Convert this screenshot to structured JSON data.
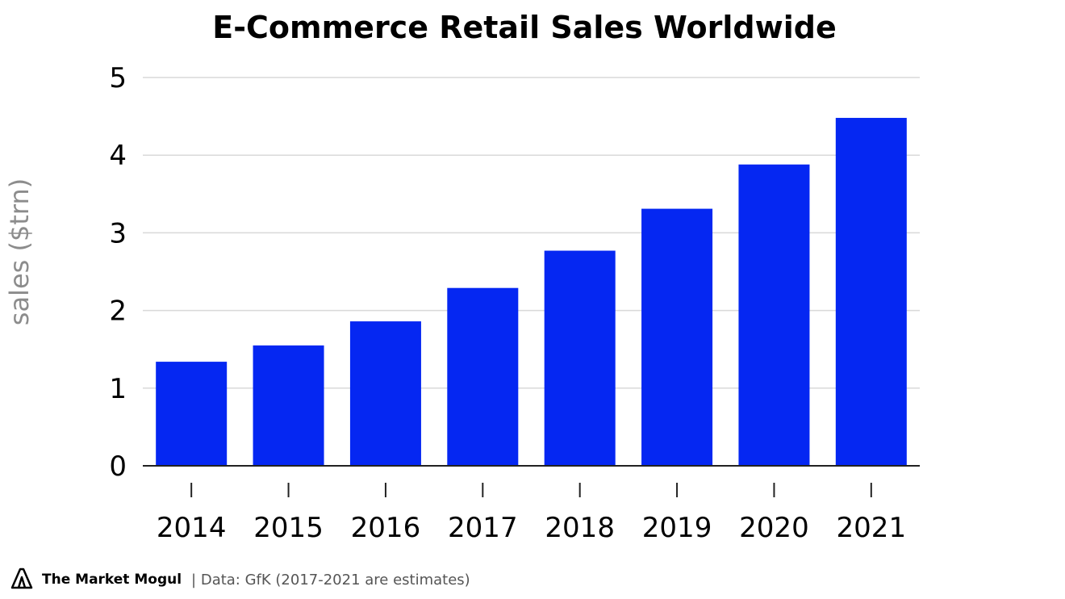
{
  "brand": {
    "name": "The Market Mogul",
    "logo_icon": "mountain-logo-icon"
  },
  "footer": {
    "source": "| Data: GfK (2017-2021 are estimates)"
  },
  "colors": {
    "bar": "#0527f2",
    "grid": "#d9d9d9",
    "axis": "#222222",
    "ylabel": "#8c8c8c"
  },
  "chart_data": {
    "type": "bar",
    "title": "E-Commerce Retail Sales Worldwide",
    "xlabel": "",
    "ylabel": "sales ($trn)",
    "categories": [
      "2014",
      "2015",
      "2016",
      "2017",
      "2018",
      "2019",
      "2020",
      "2021"
    ],
    "values": [
      1.34,
      1.55,
      1.86,
      2.29,
      2.77,
      3.31,
      3.88,
      4.48
    ],
    "ylim": [
      0,
      5
    ],
    "yticks": [
      "0",
      "1",
      "2",
      "3",
      "4",
      "5"
    ],
    "grid": true,
    "legend": "none"
  }
}
